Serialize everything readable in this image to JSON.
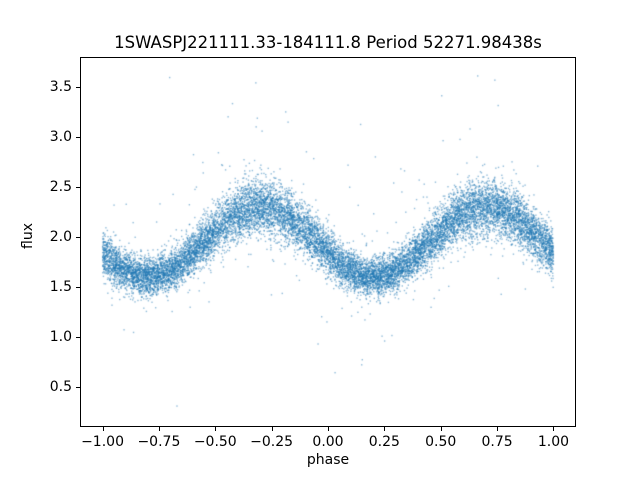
{
  "chart_data": {
    "type": "scatter",
    "title": "1SWASPJ221111.33-184111.8 Period 52271.98438s",
    "xlabel": "phase",
    "ylabel": "flux",
    "xlim": [
      -1.1,
      1.1
    ],
    "ylim": [
      0.1,
      3.8
    ],
    "xticks": [
      -1.0,
      -0.75,
      -0.5,
      -0.25,
      0.0,
      0.25,
      0.5,
      0.75,
      1.0
    ],
    "xtick_labels": [
      "−1.00",
      "−0.75",
      "−0.50",
      "−0.25",
      "0.00",
      "0.25",
      "0.50",
      "0.75",
      "1.00"
    ],
    "yticks": [
      0.5,
      1.0,
      1.5,
      2.0,
      2.5,
      3.0,
      3.5
    ],
    "ytick_labels": [
      "0.5",
      "1.0",
      "1.5",
      "2.0",
      "2.5",
      "3.0",
      "3.5"
    ],
    "grid": false,
    "legend": null,
    "marker_color": "#1f77b4",
    "marker_size_px": 1.4,
    "marker_alpha": 0.5,
    "n_points": 15000,
    "series": [
      {
        "name": "phase-folded flux",
        "description": "Dense phase-folded stellar light curve; sinusoidal variation, two full cycles across phase -1 to 1",
        "model": {
          "flux_mean": 1.95,
          "amplitude": 0.35,
          "period_in_phase": 1.0,
          "phase_offset": 0.45,
          "peak_phases": [
            -0.3,
            0.7
          ],
          "peak_flux": 2.3,
          "trough_phases": [
            -0.8,
            0.2
          ],
          "trough_flux": 1.6,
          "noise_sigma_trough": 0.095,
          "noise_sigma_peak": 0.14,
          "outlier_fraction": 0.012,
          "outlier_spread": 0.55,
          "observed_flux_min": 0.3,
          "observed_flux_max": 3.65,
          "phase_range": [
            -1.0,
            1.0
          ]
        }
      }
    ],
    "plot_style": {
      "background": "#ffffff",
      "spine_color": "#000000"
    },
    "random_seed": 1337
  }
}
